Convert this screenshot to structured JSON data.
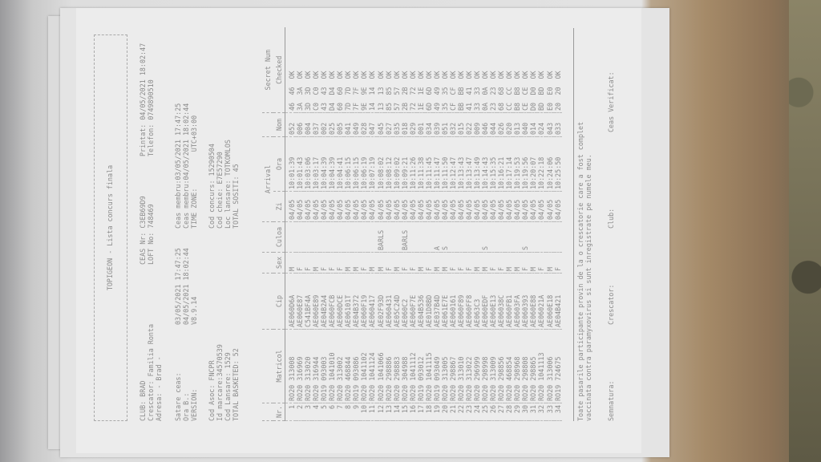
{
  "header": {
    "title": "TOPIGEON  -  Lista concurs finala",
    "club": "CLUB: BRAD",
    "crescator": "Crescator: Familia Ronta",
    "adresa": "Adresa: - Brad -",
    "ceas_nr": "CEAS Nr: C3EB69D9",
    "loft_no": "LOFT No: 748469",
    "printat": "Printat: 04/05/2021 18:02:47",
    "telefon": "Telefon: 0749890510",
    "satare_label": "Satare ceas:",
    "satare_value": "03/05/2021 17:47:25",
    "ora_label": "Ora B.:",
    "ora_value": "04/05/2021 18:02:44",
    "version_label": "VERSION:",
    "version_value": "V8.9.14",
    "ceas_membru_1": "Ceas membru:03/05/2021 17:47:25",
    "ceas_membru_2": "Ceas membru:04/05/2021 18:02:44",
    "time_zone": "TIME ZONE:         UTC+03:00",
    "cod_asoc": "Cod Asoc: FNCPR",
    "id_marcare": "Id marcare:34570539",
    "cod_lansare": "Cod Lansare: 1529",
    "total_basketed": "TOTAL BASKETED: 52",
    "cod_concurs": "Cod concurs: 15290504",
    "cod_cheie": "Cod cheie: E7E57290",
    "loc_lansare": "Loc lansare: TOTKOMLOS",
    "total_sositi": "TOTAL SOSITI: 45"
  },
  "table": {
    "columns": {
      "nr": "Nr.",
      "matricol": "Matricol",
      "cip": "Cip",
      "sex": "Sex",
      "culoa": "Culoa",
      "arrival": "Arrival",
      "zi": "Zi",
      "ora": "Ora",
      "nom": "Nom",
      "secret": "Secret Num",
      "checked": "Checked"
    },
    "rows": [
      [
        "1",
        "RO20 313008",
        "AE060D6A",
        "M",
        "",
        "04/05",
        "10:01:39",
        "052",
        "46",
        "46",
        "OK"
      ],
      [
        "2",
        "RO20 316969",
        "AE060E87",
        "F",
        "",
        "04/05",
        "10:01:43",
        "006",
        "3A",
        "3A",
        "OK"
      ],
      [
        "3",
        "RO20 313020",
        "C541BF4A",
        "F",
        "",
        "04/05",
        "10:03:06",
        "004",
        "3D",
        "3D",
        "OK"
      ],
      [
        "4",
        "RO20 316944",
        "AE060E89",
        "M",
        "",
        "04/05",
        "10:03:17",
        "037",
        "C0",
        "C0",
        "OK"
      ],
      [
        "5",
        "RO19 093003",
        "AE04B2A4",
        "F",
        "",
        "04/05",
        "10:04:39",
        "002",
        "43",
        "43",
        "OK"
      ],
      [
        "6",
        "RO20 1041010",
        "AE060FCB",
        "F",
        "",
        "04/05",
        "10:04:39",
        "025",
        "D4",
        "D4",
        "OK"
      ],
      [
        "7",
        "RO20 313002",
        "AE060DCE",
        "F",
        "",
        "04/05",
        "10:04:41",
        "005",
        "60",
        "60",
        "OK"
      ],
      [
        "8",
        "RO20 468844",
        "AE06101T",
        "M",
        "",
        "04/05",
        "10:06:15",
        "041",
        "7D",
        "7D",
        "OK"
      ],
      [
        "9",
        "RO19 093086",
        "AE04B372",
        "M",
        "",
        "04/05",
        "10:06:15",
        "049",
        "7F",
        "7F",
        "OK"
      ],
      [
        "10",
        "RO20 1041102",
        "AE060F19",
        "F",
        "",
        "04/05",
        "10:06:19",
        "028",
        "9E",
        "9E",
        "OK"
      ],
      [
        "11",
        "RO20 1041124",
        "AE060417",
        "M",
        "",
        "04/05",
        "10:07:19",
        "047",
        "14",
        "14",
        "OK"
      ],
      [
        "12",
        "RO20 1041066",
        "AE02F93D",
        "M",
        "BARLS",
        "04/05",
        "10:08:02",
        "045",
        "13",
        "13",
        "OK"
      ],
      [
        "13",
        "RO20 298886",
        "AE060431",
        "F",
        "",
        "04/05",
        "10:08:12",
        "027",
        "85",
        "85",
        "OK"
      ],
      [
        "14",
        "RO20 298883",
        "AE05C24D",
        "M",
        "",
        "04/05",
        "10:09:02",
        "035",
        "57",
        "57",
        "OK"
      ],
      [
        "15",
        "RO20 304988",
        "AE060C2",
        "F",
        "BARLS",
        "04/05",
        "10:09:21",
        "018",
        "2B",
        "2B",
        "OK"
      ],
      [
        "16",
        "RO20 1041112",
        "AE060F7E",
        "F",
        "",
        "04/05",
        "10:11:26",
        "029",
        "72",
        "72",
        "OK"
      ],
      [
        "17",
        "RO19 093012",
        "AE04B536",
        "M",
        "",
        "04/05",
        "10:11:38",
        "001",
        "1E",
        "1E",
        "OK"
      ],
      [
        "18",
        "RO20 1041115",
        "AE01D8BD",
        "F",
        "",
        "04/05",
        "10:11:45",
        "034",
        "6D",
        "6D",
        "OK"
      ],
      [
        "19",
        "RO19 093049",
        "AE037B4D",
        "M",
        "A",
        "04/05",
        "10:11:47",
        "039",
        "49",
        "49",
        "OK"
      ],
      [
        "20",
        "RO20 313005",
        "AE061E7E",
        "M",
        "S",
        "04/05",
        "10:11:50",
        "051",
        "35",
        "35",
        "OK"
      ],
      [
        "21",
        "RO20 298867",
        "AE060161",
        "F",
        "",
        "04/05",
        "10:12:47",
        "032",
        "CF",
        "CF",
        "OK"
      ],
      [
        "22",
        "RO20 313010",
        "AE060F89",
        "F",
        "",
        "04/05",
        "10:13:43",
        "015",
        "BB",
        "BB",
        "OK"
      ],
      [
        "23",
        "RO20 313022",
        "AE060FF8",
        "F",
        "",
        "04/05",
        "10:13:47",
        "022",
        "41",
        "41",
        "OK"
      ],
      [
        "24",
        "RO20 296999",
        "AE063C3",
        "M",
        "",
        "04/05",
        "10:13:49",
        "009",
        "33",
        "33",
        "OK"
      ],
      [
        "25",
        "RO20 298998",
        "AE060EDF",
        "M",
        "S",
        "04/05",
        "10:14:43",
        "046",
        "0A",
        "0A",
        "OK"
      ],
      [
        "26",
        "RO20 313009",
        "AE060E13",
        "F",
        "",
        "04/05",
        "10:15:35",
        "044",
        "23",
        "23",
        "OK"
      ],
      [
        "27",
        "RO20 298856",
        "AE06038C",
        "F",
        "",
        "04/05",
        "10:16:21",
        "026",
        "68",
        "68",
        "OK"
      ],
      [
        "28",
        "RO20 468854",
        "AE060FB1",
        "M",
        "",
        "04/05",
        "10:17:14",
        "020",
        "CC",
        "CC",
        "OK"
      ],
      [
        "29",
        "RO20 298968",
        "AE0603FA",
        "M",
        "",
        "04/05",
        "10:19:53",
        "013",
        "B8",
        "B8",
        "OK"
      ],
      [
        "30",
        "RO20 298808",
        "AE060393",
        "F",
        "S",
        "04/05",
        "10:19:56",
        "040",
        "CE",
        "CE",
        "OK"
      ],
      [
        "31",
        "RO20 298865",
        "AE060E88",
        "M",
        "",
        "04/05",
        "10:20:07",
        "014",
        "D0",
        "D0",
        "OK"
      ],
      [
        "32",
        "RO20 1041113",
        "AE06021A",
        "F",
        "",
        "04/05",
        "10:22:18",
        "024",
        "BD",
        "BD",
        "OK"
      ],
      [
        "33",
        "RO20 313006",
        "AE060E18",
        "M",
        "",
        "04/05",
        "10:24:06",
        "043",
        "E0",
        "E0",
        "OK"
      ],
      [
        "34",
        "RO19 724675",
        "AE04B421",
        "F",
        "",
        "04/05",
        "10:25:50",
        "033",
        "20",
        "20",
        "OK"
      ]
    ]
  },
  "footer": {
    "statement_1": "Toate pasarile participante provin de la o crescatorie care a fost complet",
    "statement_2": "vaccinata contra paramyxovirus si sunt inregistrate pe numele meu.",
    "semnatura": "Semnatura:",
    "crescator": "Crescator:",
    "club": "Club:",
    "ceas_verificat": "Ceas Verificat:"
  }
}
